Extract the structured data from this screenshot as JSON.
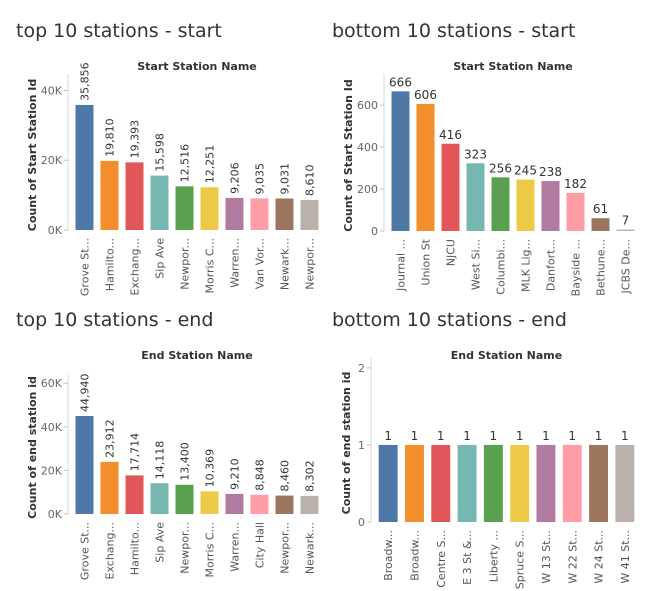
{
  "chart_data": [
    {
      "type": "bar",
      "panel_title": "top 10 stations - start",
      "xlabel": "Start Station Name",
      "ylabel": "Count of Start Station Id",
      "yticks": [
        0,
        20000,
        40000
      ],
      "ytick_labels": [
        "0K",
        "20K",
        "40K"
      ],
      "ylim": [
        0,
        43000
      ],
      "categories": [
        "Grove St...",
        "Hamilto...",
        "Exchang...",
        "Sip Ave",
        "Newpor...",
        "Morris C...",
        "Warren...",
        "Van Vor...",
        "Newark...",
        "Newpor..."
      ],
      "values": [
        35856,
        19810,
        19393,
        15598,
        12516,
        12251,
        9206,
        9035,
        9031,
        8610
      ],
      "value_labels": [
        "35,856",
        "19,810",
        "19,393",
        "15,598",
        "12,516",
        "12,251",
        "9,206",
        "9,035",
        "9,031",
        "8,610"
      ]
    },
    {
      "type": "bar",
      "panel_title": "bottom 10 stations - start",
      "xlabel": "Start Station Name",
      "ylabel": "Count of Start Station Id",
      "yticks": [
        0,
        200,
        400,
        600
      ],
      "ytick_labels": [
        "0",
        "200",
        "400",
        "600"
      ],
      "ylim": [
        0,
        720
      ],
      "categories": [
        "Journal ...",
        "Union St",
        "NJCU",
        "West Si...",
        "Columbi...",
        "MLK Lig...",
        "Danfort...",
        "Bayside ...",
        "Bethune...",
        "JCBS De..."
      ],
      "values": [
        666,
        606,
        416,
        323,
        256,
        245,
        238,
        182,
        61,
        7
      ],
      "value_labels": [
        "666",
        "606",
        "416",
        "323",
        "256",
        "245",
        "238",
        "182",
        "61",
        "7"
      ]
    },
    {
      "type": "bar",
      "panel_title": "top 10 stations - end",
      "xlabel": "End Station Name",
      "ylabel": "Count of end station id",
      "yticks": [
        0,
        20000,
        40000,
        60000
      ],
      "ytick_labels": [
        "0K",
        "20K",
        "40K",
        "60K"
      ],
      "ylim": [
        0,
        61000
      ],
      "categories": [
        "Grove St...",
        "Exchang...",
        "Hamilto...",
        "Sip Ave",
        "Newpor...",
        "Morris C...",
        "Warren...",
        "City Hall",
        "Newpor...",
        "Newark..."
      ],
      "values": [
        44940,
        23912,
        17714,
        14118,
        13400,
        10369,
        9210,
        8848,
        8460,
        8302
      ],
      "value_labels": [
        "44,940",
        "23,912",
        "17,714",
        "14,118",
        "13,400",
        "10,369",
        "9,210",
        "8,848",
        "8,460",
        "8,302"
      ]
    },
    {
      "type": "bar",
      "panel_title": "bottom 10 stations - end",
      "xlabel": "End Station Name",
      "ylabel": "Count of end station id",
      "yticks": [
        0,
        1,
        2
      ],
      "ytick_labels": [
        "0",
        "1",
        "2"
      ],
      "ylim": [
        0,
        2.05
      ],
      "categories": [
        "Broadw...",
        "Broadw...",
        "Centre S...",
        "E 3 St &...",
        "Liberty ...",
        "Spruce S...",
        "W 13 St...",
        "W 22 St...",
        "W 24 St...",
        "W 41 St..."
      ],
      "values": [
        1,
        1,
        1,
        1,
        1,
        1,
        1,
        1,
        1,
        1
      ],
      "value_labels": [
        "1",
        "1",
        "1",
        "1",
        "1",
        "1",
        "1",
        "1",
        "1",
        "1"
      ]
    }
  ],
  "colors": [
    "#4e79a7",
    "#f28e2b",
    "#e15759",
    "#76b7b2",
    "#59a14f",
    "#edc948",
    "#b07aa1",
    "#ff9da7",
    "#9c755f",
    "#bab0ac"
  ],
  "axis_color": "#666666",
  "grid": false
}
